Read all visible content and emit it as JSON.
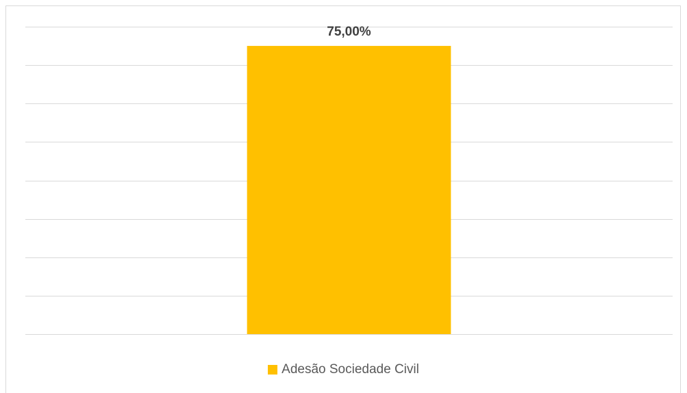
{
  "chart_data": {
    "type": "bar",
    "categories": [
      ""
    ],
    "series": [
      {
        "name": "Adesão Sociedade Civil",
        "values": [
          75
        ],
        "color": "#FFC000"
      }
    ],
    "data_labels": [
      "75,00%"
    ],
    "ylim": [
      0,
      80
    ],
    "grid": true,
    "legend_position": "bottom"
  }
}
